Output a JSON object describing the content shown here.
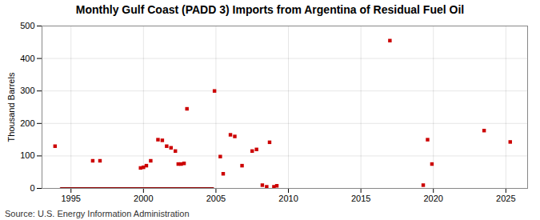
{
  "chart_data": {
    "type": "scatter",
    "title": "Monthly Gulf Coast (PADD 3) Imports from Argentina of Residual Fuel Oil",
    "ylabel": "Thousand Barrels",
    "source": "Source: U.S. Energy Information Administration",
    "xlim": [
      1993.0,
      2026.5
    ],
    "xticks": [
      1995,
      2000,
      2005,
      2010,
      2015,
      2020,
      2025
    ],
    "ylim": [
      0,
      500
    ],
    "yticks": [
      0,
      100,
      200,
      300,
      400,
      500
    ],
    "grid": true,
    "series": [
      {
        "type": "scatter",
        "color": "#cc0000",
        "marker": "square",
        "x": [
          1993.9,
          1996.5,
          1997.0,
          1999.8,
          2000.0,
          2000.2,
          2000.5,
          2001.0,
          2001.3,
          2001.6,
          2001.9,
          2002.2,
          2002.4,
          2002.6,
          2002.8,
          2003.0,
          2004.9,
          2005.3,
          2005.5,
          2006.0,
          2006.3,
          2006.8,
          2007.5,
          2007.8,
          2008.2,
          2008.5,
          2008.7,
          2009.0,
          2009.2,
          2017.0,
          2019.3,
          2019.6,
          2019.9,
          2023.5,
          2025.3
        ],
        "values": [
          130,
          85,
          85,
          63,
          65,
          70,
          85,
          150,
          148,
          130,
          125,
          115,
          75,
          75,
          77,
          245,
          300,
          98,
          45,
          165,
          160,
          70,
          115,
          120,
          10,
          5,
          142,
          5,
          8,
          455,
          10,
          150,
          75,
          178,
          143
        ]
      },
      {
        "type": "line",
        "color": "#8b0000",
        "line_style": "solid",
        "x": [
          1994.3,
          2004.8
        ],
        "values": [
          0,
          0
        ]
      }
    ]
  }
}
